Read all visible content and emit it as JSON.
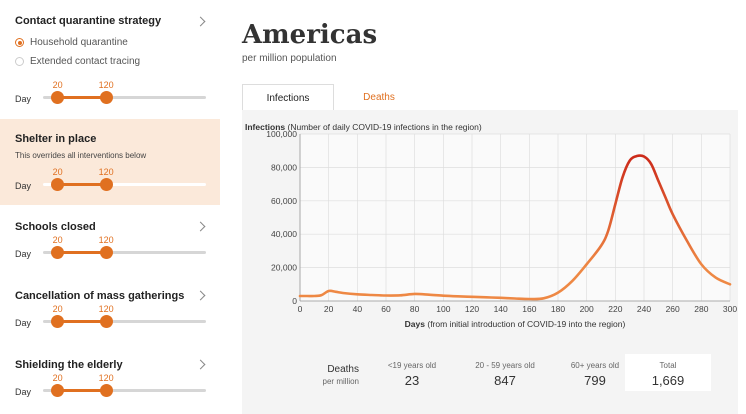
{
  "sidebar": {
    "day_label": "Day",
    "sections": [
      {
        "title": "Contact quarantine strategy",
        "options": [
          {
            "label": "Household quarantine",
            "selected": true
          },
          {
            "label": "Extended contact tracing",
            "selected": false
          }
        ],
        "range": [
          20,
          120
        ]
      },
      {
        "title": "Shelter in place",
        "subtitle": "This overrides all interventions below",
        "range": [
          20,
          120
        ]
      },
      {
        "title": "Schools closed",
        "range": [
          20,
          120
        ]
      },
      {
        "title": "Cancellation of mass gatherings",
        "range": [
          20,
          120
        ]
      },
      {
        "title": "Shielding the elderly",
        "range": [
          20,
          120
        ]
      }
    ]
  },
  "main": {
    "title": "Americas",
    "subtitle": "per million population",
    "tabs": [
      {
        "label": "Infections",
        "active": true
      },
      {
        "label": "Deaths",
        "active": false
      }
    ]
  },
  "chart_data": {
    "type": "line",
    "title_bold": "Infections",
    "title_rest": "(Number of daily COVID-19 infections in the region)",
    "xlabel_bold": "Days",
    "xlabel_rest": "(from initial introduction of COVID-19 into the region)",
    "xlim": [
      0,
      300
    ],
    "ylim": [
      0,
      100000
    ],
    "xticks": [
      0,
      20,
      40,
      60,
      80,
      100,
      120,
      140,
      160,
      180,
      200,
      220,
      240,
      260,
      280,
      300
    ],
    "yticks": [
      "0",
      "20,000",
      "40,000",
      "60,000",
      "80,000",
      "100,000"
    ],
    "ytick_values": [
      0,
      20000,
      40000,
      60000,
      80000,
      100000
    ],
    "grid": true,
    "colors": {
      "line": "#ee8844",
      "peak": "#cc2a1a"
    },
    "series": [
      {
        "x": [
          0,
          5,
          10,
          15,
          20,
          25,
          30,
          40,
          50,
          60,
          70,
          80,
          90,
          100,
          110,
          120,
          130,
          140,
          150,
          160,
          170,
          180,
          190,
          200,
          210,
          215,
          220,
          225,
          230,
          235,
          240,
          245,
          250,
          255,
          260,
          270,
          280,
          290,
          300
        ],
        "y": [
          3000,
          3000,
          3000,
          3500,
          6000,
          5500,
          4800,
          4000,
          3600,
          3300,
          3400,
          4200,
          3800,
          3200,
          2800,
          2500,
          2200,
          1900,
          1500,
          1200,
          1600,
          5000,
          12000,
          22000,
          33000,
          42000,
          58000,
          74000,
          84000,
          86800,
          86500,
          82000,
          72000,
          62000,
          52000,
          36000,
          22000,
          14000,
          10000
        ]
      }
    ]
  },
  "deaths": {
    "label": "Deaths",
    "sublabel": "per million",
    "groups": [
      {
        "label": "<19 years old",
        "value": "23"
      },
      {
        "label": "20 - 59 years old",
        "value": "847"
      },
      {
        "label": "60+ years old",
        "value": "799"
      },
      {
        "label": "Total",
        "value": "1,669"
      }
    ]
  }
}
